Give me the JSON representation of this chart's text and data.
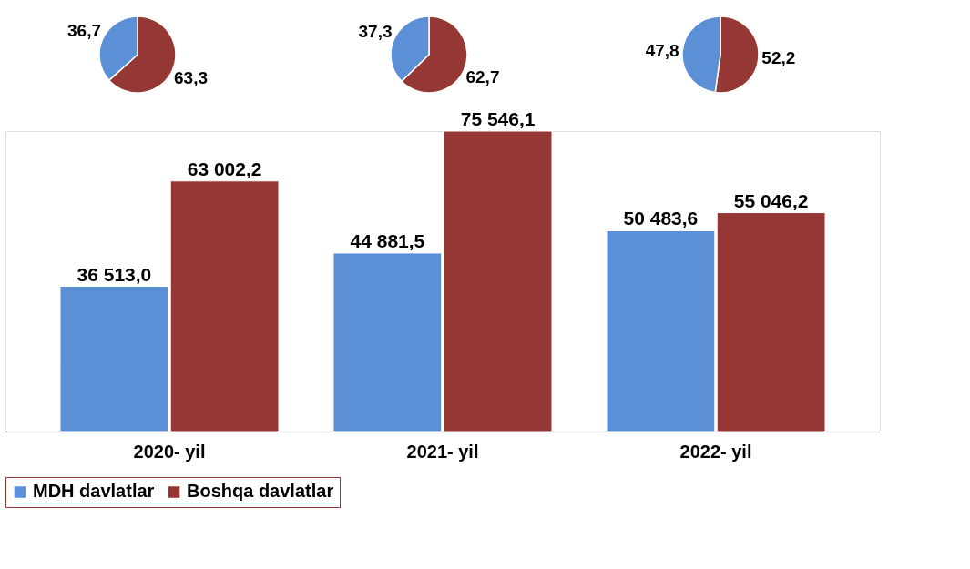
{
  "chart_data": [
    {
      "type": "bar",
      "categories": [
        "2020- yil",
        "2021- yil",
        "2022- yil"
      ],
      "legend": "bottom",
      "series": [
        {
          "name": "MDH davlatlar",
          "color": "#5b8fd6",
          "values": [
            36513.0,
            44881.5,
            50483.6
          ],
          "value_labels": [
            "36 513,0",
            "44 881,5",
            "50 483,6"
          ]
        },
        {
          "name": "Boshqa davlatlar",
          "color": "#953735",
          "values": [
            63002.2,
            75546.1,
            55046.2
          ],
          "value_labels": [
            "63 002,2",
            "75 546,1",
            "55 046,2"
          ]
        }
      ]
    },
    {
      "type": "pie",
      "categories": [
        null,
        null
      ],
      "values": [
        63.3,
        36.7
      ],
      "colors": [
        "#953735",
        "#5b8fd6"
      ],
      "value_labels": [
        "63,3",
        "36,7"
      ]
    },
    {
      "type": "pie",
      "categories": [
        null,
        null
      ],
      "values": [
        62.7,
        37.3
      ],
      "colors": [
        "#953735",
        "#5b8fd6"
      ],
      "value_labels": [
        "62,7",
        "37,3"
      ]
    },
    {
      "type": "pie",
      "categories": [
        null,
        null
      ],
      "values": [
        52.2,
        47.8
      ],
      "colors": [
        "#953735",
        "#5b8fd6"
      ],
      "value_labels": [
        "52,2",
        "47,8"
      ]
    }
  ]
}
